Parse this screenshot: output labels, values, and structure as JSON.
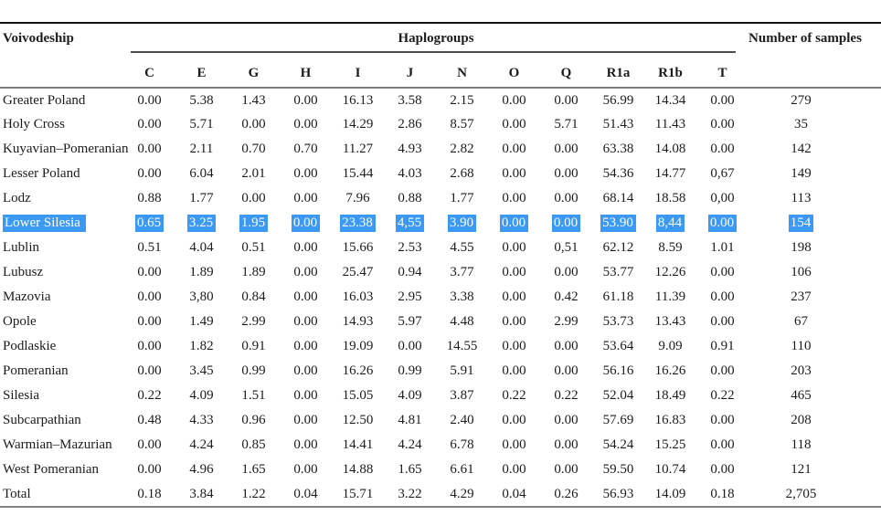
{
  "table": {
    "headers": {
      "voivodeship": "Voivodeship",
      "haplogroups": "Haplogroups",
      "samples": "Number of samples"
    },
    "haplogroup_columns": [
      "C",
      "E",
      "G",
      "H",
      "I",
      "J",
      "N",
      "O",
      "Q",
      "R1a",
      "R1b",
      "T"
    ],
    "selection_color": "#3b99f3",
    "rows": [
      {
        "name": "Greater Poland",
        "values": [
          "0.00",
          "5.38",
          "1.43",
          "0.00",
          "16.13",
          "3.58",
          "2.15",
          "0.00",
          "0.00",
          "56.99",
          "14.34",
          "0.00"
        ],
        "samples": "279",
        "selected": false
      },
      {
        "name": "Holy Cross",
        "values": [
          "0.00",
          "5.71",
          "0.00",
          "0.00",
          "14.29",
          "2.86",
          "8.57",
          "0.00",
          "5.71",
          "51.43",
          "11.43",
          "0.00"
        ],
        "samples": "35",
        "selected": false
      },
      {
        "name": "Kuyavian–Pomeranian",
        "values": [
          "0.00",
          "2.11",
          "0.70",
          "0.70",
          "11.27",
          "4.93",
          "2.82",
          "0.00",
          "0.00",
          "63.38",
          "14.08",
          "0.00"
        ],
        "samples": "142",
        "selected": false
      },
      {
        "name": "Lesser Poland",
        "values": [
          "0.00",
          "6.04",
          "2.01",
          "0.00",
          "15.44",
          "4.03",
          "2.68",
          "0.00",
          "0.00",
          "54.36",
          "14.77",
          "0,67"
        ],
        "samples": "149",
        "selected": false
      },
      {
        "name": "Lodz",
        "values": [
          "0.88",
          "1.77",
          "0.00",
          "0.00",
          "7.96",
          "0.88",
          "1.77",
          "0.00",
          "0.00",
          "68.14",
          "18.58",
          "0,00"
        ],
        "samples": "113",
        "selected": false
      },
      {
        "name": "Lower Silesia",
        "values": [
          "0.65",
          "3.25",
          "1.95",
          "0.00",
          "23.38",
          "4,55",
          "3.90",
          "0.00",
          "0.00",
          "53.90",
          "8,44",
          "0.00"
        ],
        "samples": "154",
        "selected": true
      },
      {
        "name": "Lublin",
        "values": [
          "0.51",
          "4.04",
          "0.51",
          "0.00",
          "15.66",
          "2.53",
          "4.55",
          "0.00",
          "0,51",
          "62.12",
          "8.59",
          "1.01"
        ],
        "samples": "198",
        "selected": false
      },
      {
        "name": "Lubusz",
        "values": [
          "0.00",
          "1.89",
          "1.89",
          "0.00",
          "25.47",
          "0.94",
          "3.77",
          "0.00",
          "0.00",
          "53.77",
          "12.26",
          "0.00"
        ],
        "samples": "106",
        "selected": false
      },
      {
        "name": "Mazovia",
        "values": [
          "0.00",
          "3,80",
          "0.84",
          "0.00",
          "16.03",
          "2.95",
          "3.38",
          "0.00",
          "0.42",
          "61.18",
          "11.39",
          "0.00"
        ],
        "samples": "237",
        "selected": false
      },
      {
        "name": "Opole",
        "values": [
          "0.00",
          "1.49",
          "2.99",
          "0.00",
          "14.93",
          "5.97",
          "4.48",
          "0.00",
          "2.99",
          "53.73",
          "13.43",
          "0.00"
        ],
        "samples": "67",
        "selected": false
      },
      {
        "name": "Podlaskie",
        "values": [
          "0.00",
          "1.82",
          "0.91",
          "0.00",
          "19.09",
          "0.00",
          "14.55",
          "0.00",
          "0.00",
          "53.64",
          "9.09",
          "0.91"
        ],
        "samples": "110",
        "selected": false
      },
      {
        "name": "Pomeranian",
        "values": [
          "0.00",
          "3.45",
          "0.99",
          "0.00",
          "16.26",
          "0.99",
          "5.91",
          "0.00",
          "0.00",
          "56.16",
          "16.26",
          "0.00"
        ],
        "samples": "203",
        "selected": false
      },
      {
        "name": "Silesia",
        "values": [
          "0.22",
          "4.09",
          "1.51",
          "0.00",
          "15.05",
          "4.09",
          "3.87",
          "0.22",
          "0.22",
          "52.04",
          "18.49",
          "0.22"
        ],
        "samples": "465",
        "selected": false
      },
      {
        "name": "Subcarpathian",
        "values": [
          "0.48",
          "4.33",
          "0.96",
          "0.00",
          "12.50",
          "4.81",
          "2.40",
          "0.00",
          "0.00",
          "57.69",
          "16.83",
          "0.00"
        ],
        "samples": "208",
        "selected": false
      },
      {
        "name": "Warmian–Mazurian",
        "values": [
          "0.00",
          "4.24",
          "0.85",
          "0.00",
          "14.41",
          "4.24",
          "6.78",
          "0.00",
          "0.00",
          "54.24",
          "15.25",
          "0.00"
        ],
        "samples": "118",
        "selected": false
      },
      {
        "name": "West Pomeranian",
        "values": [
          "0.00",
          "4.96",
          "1.65",
          "0.00",
          "14.88",
          "1.65",
          "6.61",
          "0.00",
          "0.00",
          "59.50",
          "10.74",
          "0.00"
        ],
        "samples": "121",
        "selected": false
      },
      {
        "name": "Total",
        "values": [
          "0.18",
          "3.84",
          "1.22",
          "0.04",
          "15.71",
          "3.22",
          "4.29",
          "0.04",
          "0.26",
          "56.93",
          "14.09",
          "0.18"
        ],
        "samples": "2,705",
        "selected": false
      }
    ]
  }
}
